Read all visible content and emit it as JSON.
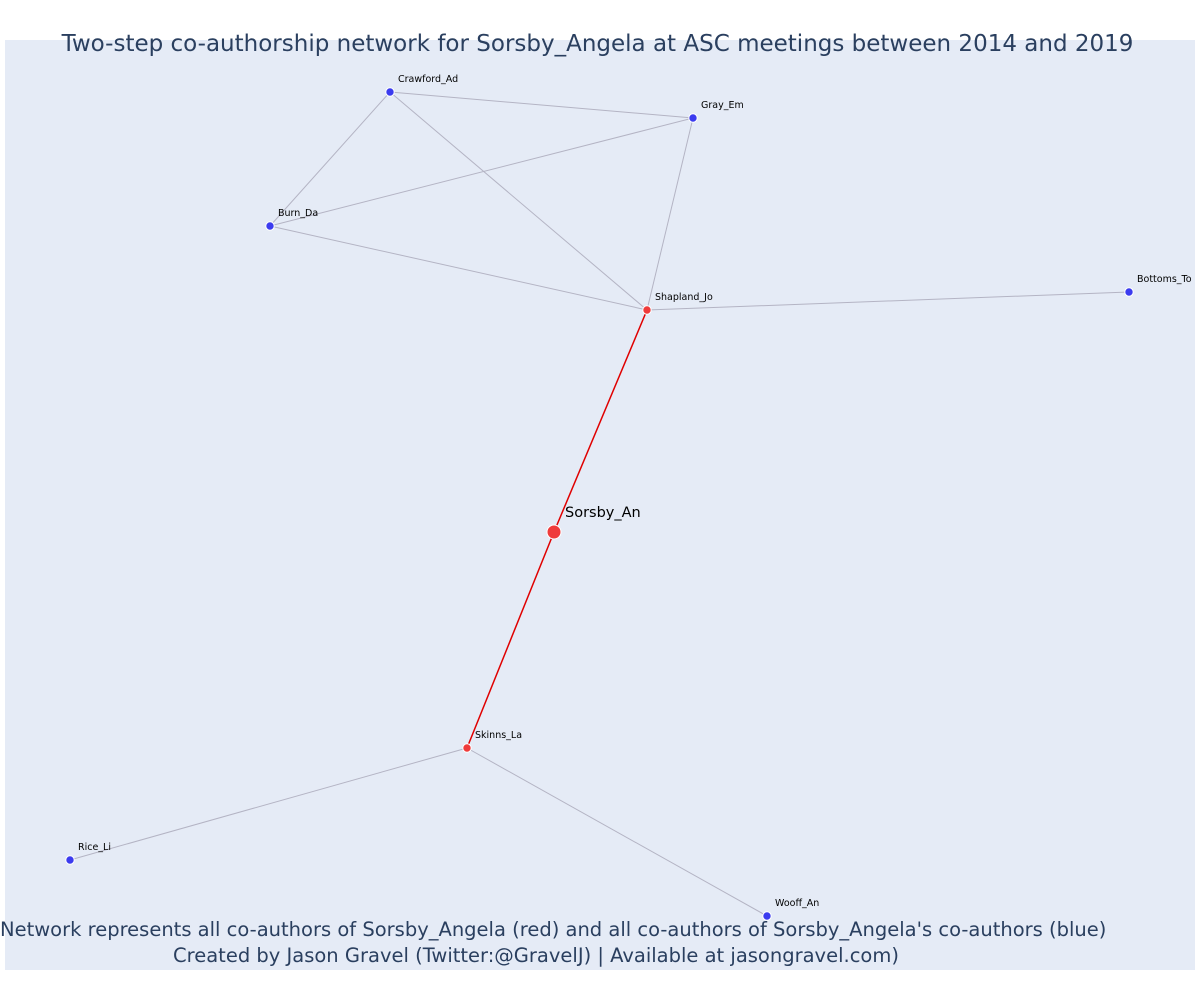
{
  "title": "Two-step co-authorship network for Sorsby_Angela at ASC meetings between 2014 and 2019",
  "footer": {
    "line1": "Network represents all co-authors of Sorsby_Angela (red) and all co-authors of Sorsby_Angela's co-authors (blue)",
    "line2": "Created by Jason Gravel (Twitter:@GravelJ) | Available at jasongravel.com)"
  },
  "colors": {
    "background": "#e5ebf6",
    "red_node": "#ef3b3b",
    "blue_node": "#3b3bef",
    "red_edge": "#e00000",
    "gray_edge": "#b4b4c4",
    "text": "#2a3f5f"
  },
  "nodes": [
    {
      "id": "Sorsby_An",
      "label": "Sorsby_An",
      "group": "focal"
    },
    {
      "id": "Shapland_Jo",
      "label": "Shapland_Jo",
      "group": "co-author"
    },
    {
      "id": "Skinns_La",
      "label": "Skinns_La",
      "group": "co-author"
    },
    {
      "id": "Crawford_Ad",
      "label": "Crawford_Ad",
      "group": "second-step"
    },
    {
      "id": "Gray_Em",
      "label": "Gray_Em",
      "group": "second-step"
    },
    {
      "id": "Burn_Da",
      "label": "Burn_Da",
      "group": "second-step"
    },
    {
      "id": "Bottoms_To",
      "label": "Bottoms_To",
      "group": "second-step"
    },
    {
      "id": "Rice_Li",
      "label": "Rice_Li",
      "group": "second-step"
    },
    {
      "id": "Wooff_An",
      "label": "Wooff_An",
      "group": "second-step"
    }
  ],
  "edges": [
    {
      "source": "Sorsby_An",
      "target": "Shapland_Jo",
      "type": "direct"
    },
    {
      "source": "Sorsby_An",
      "target": "Skinns_La",
      "type": "direct"
    },
    {
      "source": "Crawford_Ad",
      "target": "Gray_Em",
      "type": "second-step"
    },
    {
      "source": "Crawford_Ad",
      "target": "Burn_Da",
      "type": "second-step"
    },
    {
      "source": "Crawford_Ad",
      "target": "Shapland_Jo",
      "type": "second-step"
    },
    {
      "source": "Gray_Em",
      "target": "Burn_Da",
      "type": "second-step"
    },
    {
      "source": "Gray_Em",
      "target": "Shapland_Jo",
      "type": "second-step"
    },
    {
      "source": "Burn_Da",
      "target": "Shapland_Jo",
      "type": "second-step"
    },
    {
      "source": "Shapland_Jo",
      "target": "Bottoms_To",
      "type": "second-step"
    },
    {
      "source": "Skinns_La",
      "target": "Rice_Li",
      "type": "second-step"
    },
    {
      "source": "Skinns_La",
      "target": "Wooff_An",
      "type": "second-step"
    }
  ]
}
